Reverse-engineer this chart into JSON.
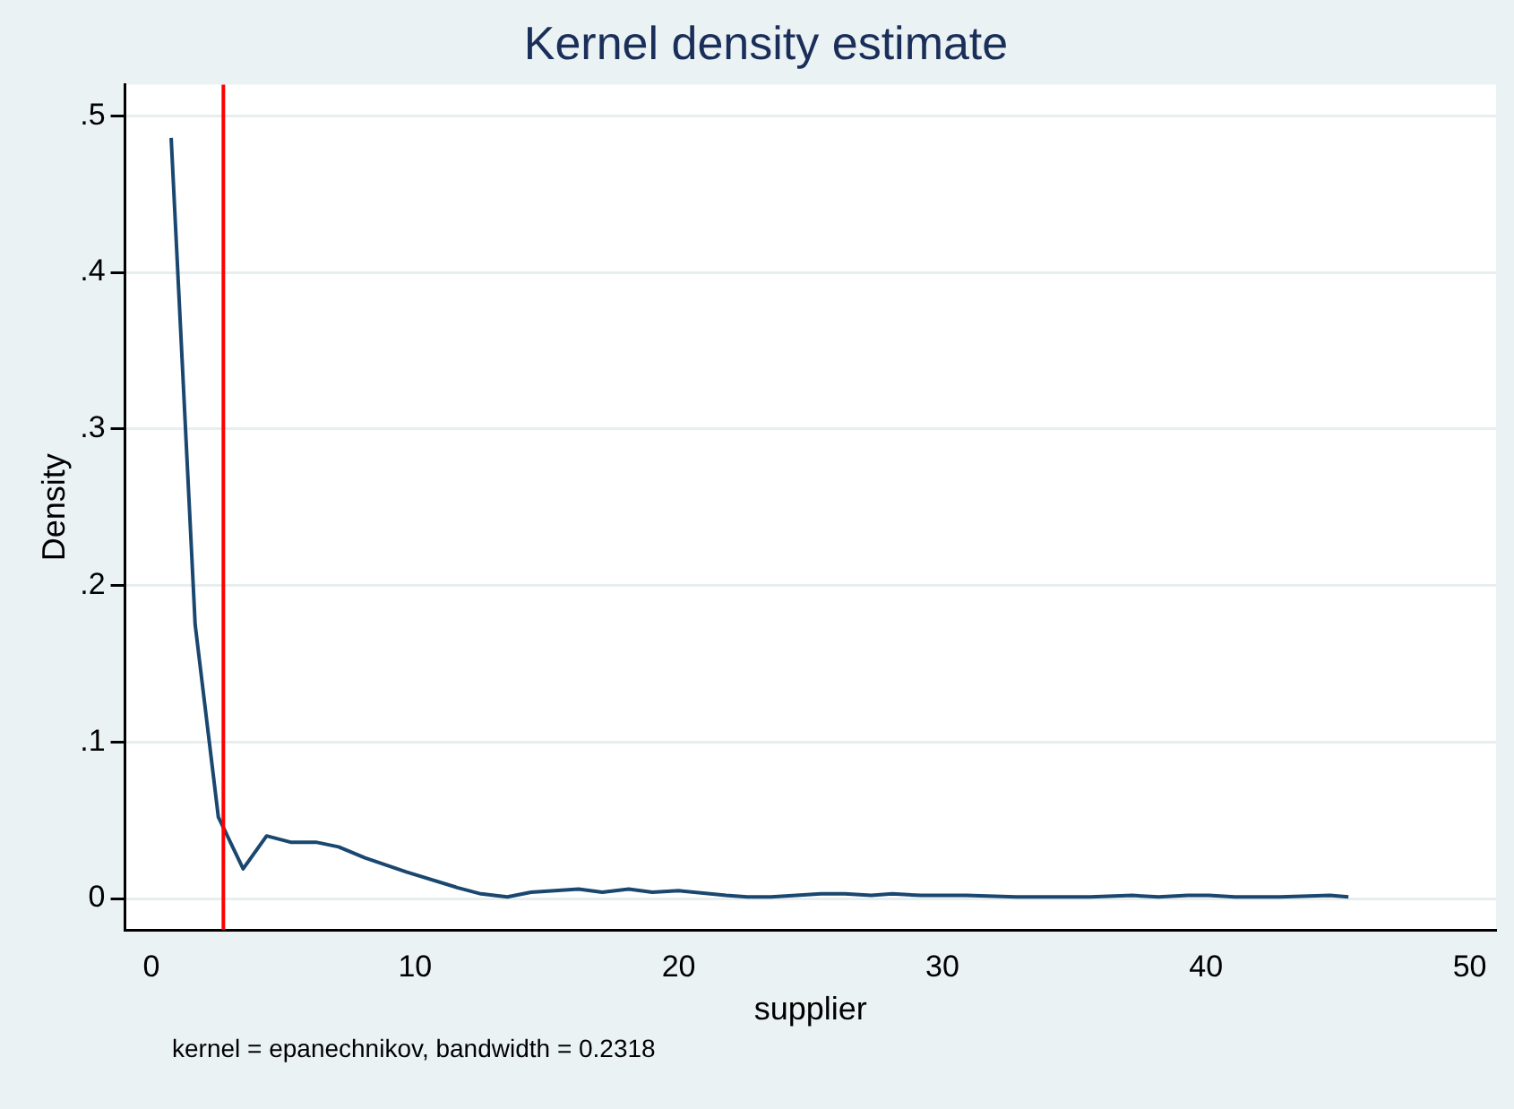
{
  "chart_data": {
    "type": "line",
    "title": "Kernel density estimate",
    "xlabel": "supplier",
    "ylabel": "Density",
    "series": [
      {
        "color": "#1a476f",
        "x": [
          0.75,
          1.66,
          2.54,
          3.48,
          4.37,
          5.28,
          6.24,
          7.1,
          8.1,
          9.67,
          11.6,
          12.5,
          13.5,
          14.4,
          15.3,
          16.2,
          17.1,
          18.1,
          19.0,
          20.0,
          21.8,
          22.6,
          23.5,
          25.4,
          26.3,
          27.3,
          28.1,
          29.2,
          30.9,
          32.8,
          34.5,
          35.6,
          37.2,
          38.2,
          39.3,
          40.1,
          41.1,
          42.8,
          44.7,
          45.4
        ],
        "values": [
          0.486,
          0.175,
          0.052,
          0.019,
          0.04,
          0.036,
          0.036,
          0.033,
          0.026,
          0.017,
          0.007,
          0.003,
          0.001,
          0.004,
          0.005,
          0.006,
          0.004,
          0.006,
          0.004,
          0.005,
          0.002,
          0.001,
          0.001,
          0.003,
          0.003,
          0.002,
          0.003,
          0.002,
          0.002,
          0.001,
          0.001,
          0.001,
          0.002,
          0.001,
          0.002,
          0.002,
          0.001,
          0.001,
          0.002,
          0.001
        ]
      }
    ],
    "xlim": [
      -1,
      51
    ],
    "xticks": [
      0,
      10,
      20,
      30,
      40,
      50
    ],
    "ylim": [
      -0.02,
      0.52
    ],
    "yticks": [
      {
        "value": 0,
        "label": "0"
      },
      {
        "value": 0.1,
        "label": ".1"
      },
      {
        "value": 0.2,
        "label": ".2"
      },
      {
        "value": 0.3,
        "label": ".3"
      },
      {
        "value": 0.4,
        "label": ".4"
      },
      {
        "value": 0.5,
        "label": ".5"
      }
    ],
    "grid": "y",
    "legend": false,
    "marker": "none",
    "line_style": "solid",
    "ref_lines": [
      {
        "axis": "x",
        "value": 2.73,
        "color": "#ff0000"
      }
    ],
    "annotations": [
      "kernel = epanechnikov, bandwidth = 0.2318"
    ]
  }
}
